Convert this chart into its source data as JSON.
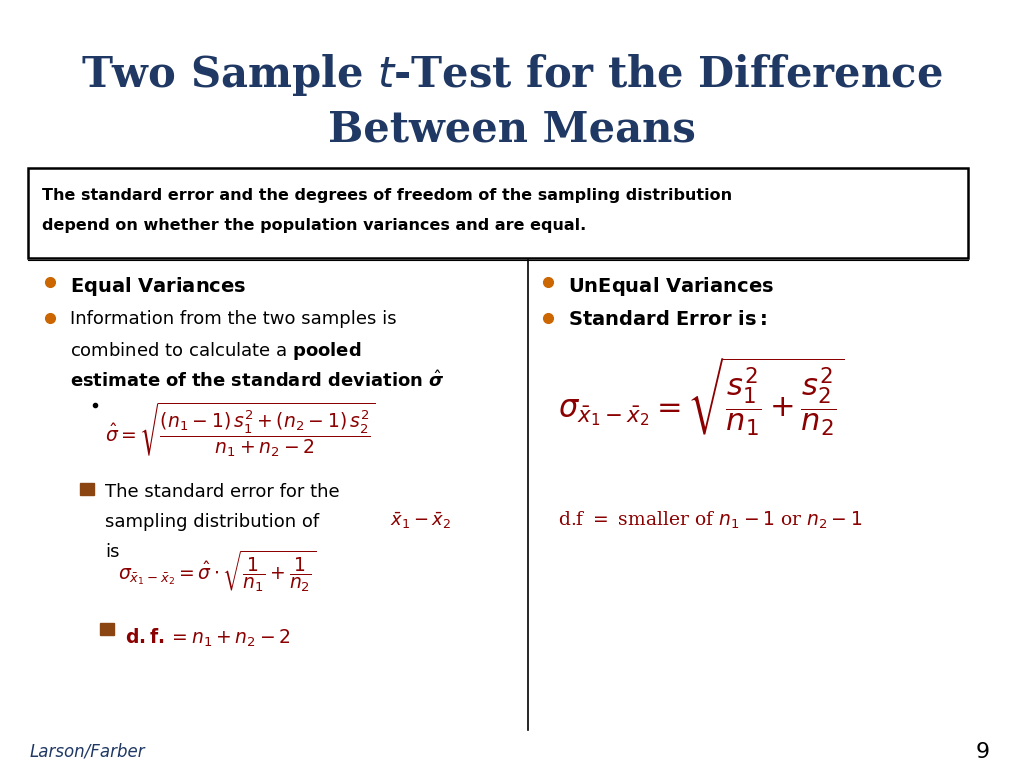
{
  "title_color": "#1F3864",
  "background_color": "#FFFFFF",
  "box_text_line1": "The standard error and the degrees of freedom of the sampling distribution",
  "box_text_line2": "depend on whether the population variances and are equal.",
  "dark_red": "#8B0000",
  "navy": "#1F3864",
  "black": "#000000",
  "orange_bullet": "#CC6600",
  "footer": "Larson/Farber",
  "page_num": "9",
  "figw": 10.24,
  "figh": 7.67,
  "dpi": 100
}
